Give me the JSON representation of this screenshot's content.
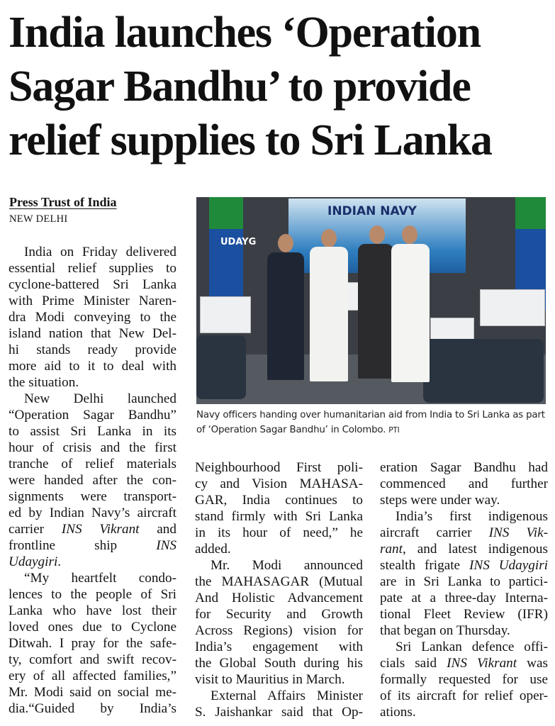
{
  "article": {
    "headline": "India launches ‘Operation Sagar Bandhu’ to provide relief supplies to Sri Lanka",
    "byline": "Press Trust of India",
    "dateline": "NEW DELHI"
  },
  "photo": {
    "banner_text": "INDIAN NAVY",
    "flag_text": "UDAYG",
    "caption": "Navy officers handing over humanitarian aid from India to Sri Lanka as part of ‘Operation Sagar Bandhu’ in Colombo.",
    "credit": "PTI"
  },
  "columns": [
    [
      [
        "India on Friday delivered",
        "essential relief supplies to",
        "cyclone-battered Sri Lanka",
        "with Prime Minister Naren-",
        "dra Modi conveying to the",
        "island nation that New Del-",
        "hi stands ready provide",
        "more aid to it to deal with",
        "the situation."
      ],
      [
        "New Delhi launched",
        "“Operation Sagar Bandhu”",
        "to assist Sri Lanka in its",
        "hour of crisis and the first",
        "tranche of relief materials",
        "were handed after the con-",
        "signments were transport-",
        "ed by Indian Navy’s aircraft",
        [
          {
            "t": "carrier "
          },
          {
            "t": "INS Vikrant",
            "i": true
          },
          {
            "t": " and"
          }
        ],
        [
          {
            "t": "frontline ship "
          },
          {
            "t": "INS",
            "i": true
          }
        ],
        [
          {
            "t": "Udaygiri",
            "i": true
          },
          {
            "t": "."
          }
        ]
      ],
      [
        "“My heartfelt condo-",
        "lences to the people of Sri",
        "Lanka who have lost their",
        "loved ones due to Cyclone",
        "Ditwah. I pray for the safe-",
        "ty, comfort and swift recov-",
        "ery of all affected families,”",
        "Mr. Modi said on social me-",
        "dia.“Guided by India’s"
      ]
    ],
    [
      [
        "Neighbourhood First poli-",
        "cy and Vision MAHASA-",
        "GAR, India continues to",
        "stand firmly with Sri Lanka",
        "in its hour of need,” he",
        "added."
      ],
      [
        "Mr. Modi announced",
        "the MAHASAGAR (Mutual",
        "And Holistic Advancement",
        "for Security and Growth",
        "Across Regions) vision for",
        "India’s engagement with",
        "the Global South during his",
        "visit to Mauritius in March."
      ],
      [
        "External Affairs Minister",
        "S. Jaishankar said that Op-"
      ]
    ],
    [
      [
        "eration Sagar Bandhu had",
        "commenced and further",
        "steps were under way."
      ],
      [
        "India’s first indigenous",
        [
          {
            "t": "aircraft carrier "
          },
          {
            "t": "INS Vik-",
            "i": true
          }
        ],
        [
          {
            "t": "rant",
            "i": true
          },
          {
            "t": ", and latest indigenous"
          }
        ],
        [
          {
            "t": "stealth frigate "
          },
          {
            "t": "INS Udaygiri",
            "i": true
          }
        ],
        "are in Sri Lanka to partici-",
        "pate at a three-day Interna-",
        "tional Fleet Review (IFR)",
        "that began on Thursday."
      ],
      [
        "Sri Lankan defence offi-",
        [
          {
            "t": "cials said "
          },
          {
            "t": "INS Vikrant",
            "i": true
          },
          {
            "t": " was"
          }
        ],
        "formally requested for use",
        "of its aircraft for relief oper-",
        "ations."
      ]
    ]
  ]
}
